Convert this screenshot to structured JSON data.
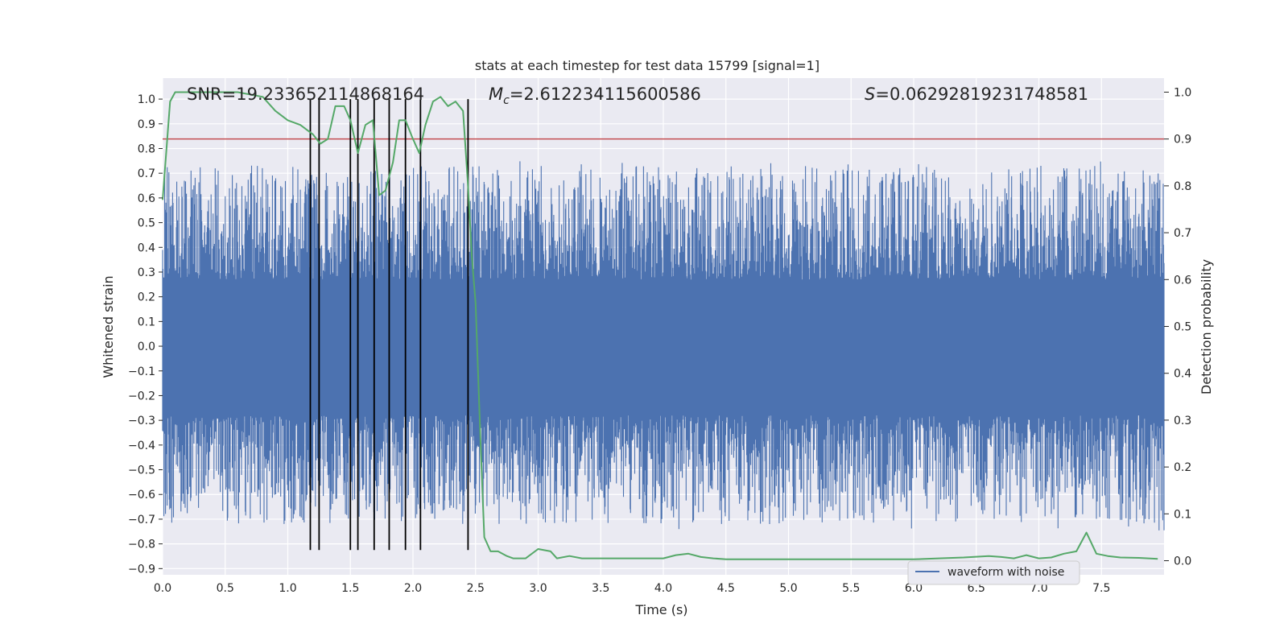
{
  "chart_data": {
    "type": "line",
    "title": "stats at each timestep for test data 15799 [signal=1]",
    "xlabel": "Time (s)",
    "ylabel_left": "Whitened strain",
    "ylabel_right": "Detection probability",
    "xlim": [
      0.0,
      8.0
    ],
    "ylim_left": [
      -0.925,
      1.085
    ],
    "ylim_right": [
      -0.03,
      1.03
    ],
    "xticks": [
      "0.0",
      "0.5",
      "1.0",
      "1.5",
      "2.0",
      "2.5",
      "3.0",
      "3.5",
      "4.0",
      "4.5",
      "5.0",
      "5.5",
      "6.0",
      "6.5",
      "7.0",
      "7.5"
    ],
    "xtick_values": [
      0.0,
      0.5,
      1.0,
      1.5,
      2.0,
      2.5,
      3.0,
      3.5,
      4.0,
      4.5,
      5.0,
      5.5,
      6.0,
      6.5,
      7.0,
      7.5
    ],
    "yticks_left": [
      "1.0",
      "0.9",
      "0.8",
      "0.7",
      "0.6",
      "0.5",
      "0.4",
      "0.3",
      "0.2",
      "0.1",
      "0.0",
      "−0.1",
      "−0.2",
      "−0.3",
      "−0.4",
      "−0.5",
      "−0.6",
      "−0.7",
      "−0.8",
      "−0.9"
    ],
    "ytick_values_left": [
      1.0,
      0.9,
      0.8,
      0.7,
      0.6,
      0.5,
      0.4,
      0.3,
      0.2,
      0.1,
      0.0,
      -0.1,
      -0.2,
      -0.3,
      -0.4,
      -0.5,
      -0.6,
      -0.7,
      -0.8,
      -0.9
    ],
    "yticks_right": [
      "1.0",
      "0.9",
      "0.8",
      "0.7",
      "0.6",
      "0.5",
      "0.4",
      "0.3",
      "0.2",
      "0.1",
      "0.0"
    ],
    "ytick_values_right": [
      1.0,
      0.9,
      0.8,
      0.7,
      0.6,
      0.5,
      0.4,
      0.3,
      0.2,
      0.1,
      0.0
    ],
    "annotations": {
      "snr": "SNR=19.233652114868164",
      "mc_symbol": "M",
      "mc_sub": "c",
      "mc_value": "=2.612234115600586",
      "s_symbol": "S",
      "s_value": "=0.06292819231748581"
    },
    "legend": {
      "label": "waveform with noise",
      "placement": "lower-right"
    },
    "series": [
      {
        "name": "waveform with noise",
        "axis": "left",
        "style": "dense noise",
        "duration": 8.0,
        "core_band": [
          -0.28,
          0.27
        ],
        "upper_extreme": 0.83,
        "lower_extreme": -0.82
      },
      {
        "name": "detection probability",
        "axis": "right",
        "x": [
          0.0,
          0.06,
          0.1,
          0.2,
          0.4,
          0.6,
          0.8,
          0.9,
          1.0,
          1.1,
          1.2,
          1.26,
          1.32,
          1.38,
          1.45,
          1.5,
          1.56,
          1.62,
          1.68,
          1.73,
          1.78,
          1.84,
          1.89,
          1.94,
          2.0,
          2.05,
          2.1,
          2.16,
          2.22,
          2.28,
          2.34,
          2.4,
          2.44,
          2.47,
          2.5,
          2.54,
          2.57,
          2.62,
          2.68,
          2.75,
          2.8,
          2.9,
          3.0,
          3.1,
          3.15,
          3.25,
          3.35,
          3.45,
          3.6,
          3.8,
          4.0,
          4.1,
          4.2,
          4.3,
          4.4,
          4.5,
          4.6,
          4.8,
          5.0,
          5.2,
          5.5,
          5.8,
          6.0,
          6.2,
          6.4,
          6.6,
          6.7,
          6.8,
          6.9,
          7.0,
          7.1,
          7.2,
          7.3,
          7.38,
          7.46,
          7.55,
          7.65,
          7.8,
          7.95
        ],
        "y": [
          0.77,
          0.98,
          1.0,
          1.0,
          1.0,
          1.0,
          0.99,
          0.96,
          0.94,
          0.93,
          0.91,
          0.89,
          0.9,
          0.97,
          0.97,
          0.94,
          0.87,
          0.93,
          0.94,
          0.78,
          0.79,
          0.85,
          0.94,
          0.94,
          0.9,
          0.87,
          0.93,
          0.98,
          0.99,
          0.97,
          0.98,
          0.96,
          0.8,
          0.65,
          0.55,
          0.25,
          0.05,
          0.02,
          0.02,
          0.01,
          0.005,
          0.005,
          0.025,
          0.02,
          0.005,
          0.01,
          0.005,
          0.005,
          0.005,
          0.005,
          0.005,
          0.012,
          0.015,
          0.008,
          0.005,
          0.003,
          0.003,
          0.003,
          0.003,
          0.003,
          0.003,
          0.003,
          0.003,
          0.005,
          0.007,
          0.01,
          0.008,
          0.005,
          0.012,
          0.005,
          0.007,
          0.015,
          0.02,
          0.06,
          0.015,
          0.01,
          0.007,
          0.006,
          0.004
        ]
      },
      {
        "name": "threshold",
        "axis": "right",
        "style": "horizontal",
        "y": 0.9,
        "color": "#c44e52"
      }
    ],
    "vertical_lines": [
      1.18,
      1.25,
      1.5,
      1.56,
      1.69,
      1.81,
      1.94,
      2.06,
      2.44
    ],
    "vertical_line_range": [
      -0.825,
      1.0
    ],
    "colors": {
      "waveform": "#4c72b0",
      "probability": "#55a868",
      "threshold": "#c44e52",
      "marker_lines": "#000000",
      "plot_background": "#eaeaf2",
      "grid": "#ffffff"
    }
  }
}
